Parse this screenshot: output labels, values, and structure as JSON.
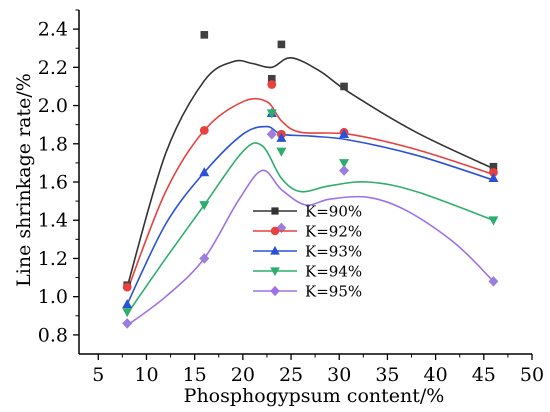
{
  "chart_data": {
    "type": "scatter",
    "title": "",
    "xlabel": "Phosphogypsum content/%",
    "ylabel": "Line shrinkage rate/%",
    "xlim": [
      3,
      50
    ],
    "ylim": [
      0.7,
      2.5
    ],
    "xticks": [
      5,
      10,
      15,
      20,
      25,
      30,
      35,
      40,
      45,
      50
    ],
    "yticks": [
      0.8,
      1.0,
      1.2,
      1.4,
      1.6,
      1.8,
      2.0,
      2.2,
      2.4
    ],
    "xtick_labels": [
      "5",
      "10",
      "15",
      "20",
      "25",
      "30",
      "35",
      "40",
      "45",
      "50"
    ],
    "ytick_labels": [
      "0.8",
      "1.0",
      "1.2",
      "1.4",
      "1.6",
      "1.8",
      "2.0",
      "2.2",
      "2.4"
    ],
    "grid": false,
    "legend_position": "center",
    "series": [
      {
        "name": "K=90%",
        "marker": "square",
        "point_color": "#404040",
        "line_color": "#333333",
        "points": [
          [
            8,
            1.06
          ],
          [
            16,
            2.37
          ],
          [
            23,
            2.14
          ],
          [
            24,
            2.32
          ],
          [
            30.5,
            2.1
          ],
          [
            46,
            1.68
          ]
        ],
        "curve": [
          [
            8,
            1.05
          ],
          [
            12,
            1.75
          ],
          [
            16,
            2.13
          ],
          [
            19,
            2.23
          ],
          [
            21,
            2.22
          ],
          [
            23,
            2.2
          ],
          [
            25,
            2.25
          ],
          [
            28,
            2.18
          ],
          [
            31,
            2.07
          ],
          [
            38,
            1.86
          ],
          [
            46,
            1.67
          ]
        ]
      },
      {
        "name": "K=92%",
        "marker": "circle",
        "point_color": "#e8413e",
        "line_color": "#e8413e",
        "points": [
          [
            8,
            1.05
          ],
          [
            16,
            1.87
          ],
          [
            23,
            2.11
          ],
          [
            24,
            1.85
          ],
          [
            30.5,
            1.86
          ],
          [
            46,
            1.65
          ]
        ],
        "curve": [
          [
            8,
            1.03
          ],
          [
            12,
            1.55
          ],
          [
            16,
            1.87
          ],
          [
            20,
            2.02
          ],
          [
            22.5,
            2.02
          ],
          [
            24,
            1.92
          ],
          [
            26,
            1.86
          ],
          [
            31,
            1.85
          ],
          [
            38,
            1.77
          ],
          [
            46,
            1.64
          ]
        ]
      },
      {
        "name": "K=93%",
        "marker": "triangle-up",
        "point_color": "#2a52d8",
        "line_color": "#2a52d8",
        "points": [
          [
            8,
            0.96
          ],
          [
            16,
            1.65
          ],
          [
            23,
            1.96
          ],
          [
            24,
            1.83
          ],
          [
            30.5,
            1.85
          ],
          [
            46,
            1.62
          ]
        ],
        "curve": [
          [
            8,
            0.96
          ],
          [
            12,
            1.38
          ],
          [
            16,
            1.65
          ],
          [
            20,
            1.85
          ],
          [
            22.5,
            1.89
          ],
          [
            24,
            1.85
          ],
          [
            27,
            1.84
          ],
          [
            31,
            1.82
          ],
          [
            38,
            1.74
          ],
          [
            46,
            1.61
          ]
        ]
      },
      {
        "name": "K=94%",
        "marker": "triangle-down",
        "point_color": "#2eae6c",
        "line_color": "#2eae6c",
        "points": [
          [
            8,
            0.92
          ],
          [
            16,
            1.48
          ],
          [
            23,
            1.96
          ],
          [
            24,
            1.76
          ],
          [
            30.5,
            1.7
          ],
          [
            46,
            1.4
          ]
        ],
        "curve": [
          [
            8,
            0.91
          ],
          [
            12,
            1.2
          ],
          [
            16,
            1.48
          ],
          [
            20,
            1.76
          ],
          [
            22,
            1.79
          ],
          [
            24,
            1.62
          ],
          [
            26,
            1.55
          ],
          [
            29,
            1.58
          ],
          [
            33,
            1.6
          ],
          [
            38,
            1.55
          ],
          [
            46,
            1.4
          ]
        ]
      },
      {
        "name": "K=95%",
        "marker": "diamond",
        "point_color": "#9b7fe0",
        "line_color": "#a070e8",
        "points": [
          [
            8,
            0.86
          ],
          [
            16,
            1.2
          ],
          [
            23,
            1.85
          ],
          [
            24,
            1.36
          ],
          [
            30.5,
            1.66
          ],
          [
            46,
            1.08
          ]
        ],
        "curve": [
          [
            8,
            0.85
          ],
          [
            12,
            1.0
          ],
          [
            16,
            1.2
          ],
          [
            19.5,
            1.5
          ],
          [
            22,
            1.66
          ],
          [
            24,
            1.56
          ],
          [
            26.5,
            1.48
          ],
          [
            29,
            1.51
          ],
          [
            33,
            1.52
          ],
          [
            37,
            1.45
          ],
          [
            42,
            1.28
          ],
          [
            46,
            1.08
          ]
        ]
      }
    ]
  }
}
